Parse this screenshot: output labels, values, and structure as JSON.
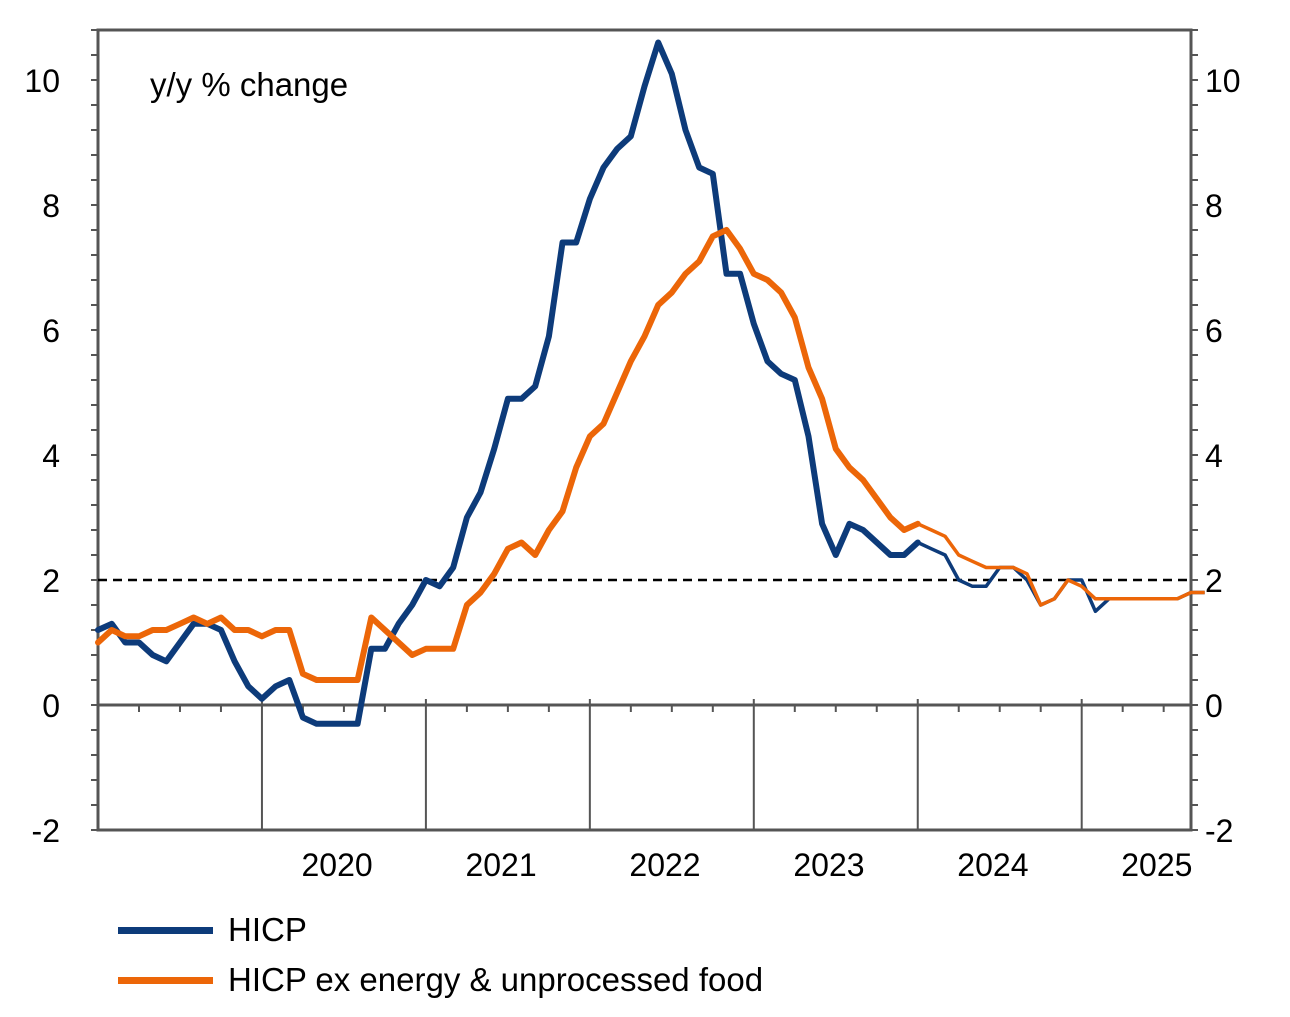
{
  "chart_data": {
    "type": "line",
    "annotation": "y/y % change",
    "x_tick_labels": [
      "2020",
      "2021",
      "2022",
      "2023",
      "2024",
      "2025"
    ],
    "x_tick_years": [
      2020,
      2021,
      2022,
      2023,
      2024,
      2025
    ],
    "x_range": [
      "2019-01",
      "2025-09"
    ],
    "y_range": [
      -2,
      10.8
    ],
    "y_ticks": [
      -2,
      0,
      2,
      4,
      6,
      8,
      10
    ],
    "y_tick_labels_left": [
      "-2",
      "0",
      "2",
      "4",
      "6",
      "8",
      "10"
    ],
    "y_tick_labels_right": [
      "-2",
      "0",
      "2",
      "4",
      "6",
      "8",
      "10"
    ],
    "reference_line": {
      "y": 2,
      "style": "dashed"
    },
    "colors": {
      "hicp": "#0d3b7a",
      "core": "#ec6608"
    },
    "series": [
      {
        "name": "HICP",
        "color": "#0d3b7a",
        "start": "2019-01",
        "values": [
          1.2,
          1.3,
          1.0,
          1.0,
          0.8,
          0.7,
          1.0,
          1.3,
          1.3,
          1.2,
          0.7,
          0.3,
          0.1,
          0.3,
          0.4,
          -0.2,
          -0.3,
          -0.3,
          -0.3,
          -0.3,
          0.9,
          0.9,
          1.3,
          1.6,
          2.0,
          1.9,
          2.2,
          3.0,
          3.4,
          4.1,
          4.9,
          4.9,
          5.1,
          5.9,
          7.4,
          7.4,
          8.1,
          8.6,
          8.9,
          9.1,
          9.9,
          10.6,
          10.1,
          9.2,
          8.6,
          8.5,
          6.9,
          6.9,
          6.1,
          5.5,
          5.3,
          5.2,
          4.3,
          2.9,
          2.4,
          2.9,
          2.8,
          2.6,
          2.4,
          2.4,
          2.6,
          2.5,
          2.4,
          2.0,
          1.9,
          1.9,
          2.2,
          2.2,
          2.0,
          1.6,
          1.7,
          2.0,
          2.0,
          1.5,
          1.7,
          1.7,
          1.7,
          1.7,
          1.7,
          1.7,
          1.8,
          1.8
        ]
      },
      {
        "name": "HICP ex energy & unprocessed food",
        "color": "#ec6608",
        "start": "2019-01",
        "values": [
          1.0,
          1.2,
          1.1,
          1.1,
          1.2,
          1.2,
          1.3,
          1.4,
          1.3,
          1.4,
          1.2,
          1.2,
          1.1,
          1.2,
          1.2,
          0.5,
          0.4,
          0.4,
          0.4,
          0.4,
          1.4,
          1.2,
          1.0,
          0.8,
          0.9,
          0.9,
          0.9,
          1.6,
          1.8,
          2.1,
          2.5,
          2.6,
          2.4,
          2.8,
          3.1,
          3.8,
          4.3,
          4.5,
          5.0,
          5.5,
          5.9,
          6.4,
          6.6,
          6.9,
          7.1,
          7.5,
          7.6,
          7.3,
          6.9,
          6.8,
          6.6,
          6.2,
          5.4,
          4.9,
          4.1,
          3.8,
          3.6,
          3.3,
          3.0,
          2.8,
          2.9,
          2.8,
          2.7,
          2.4,
          2.3,
          2.2,
          2.2,
          2.2,
          2.1,
          1.6,
          1.7,
          2.0,
          1.9,
          1.7,
          1.7,
          1.7,
          1.7,
          1.7,
          1.7,
          1.7,
          1.8,
          1.8
        ]
      }
    ]
  }
}
